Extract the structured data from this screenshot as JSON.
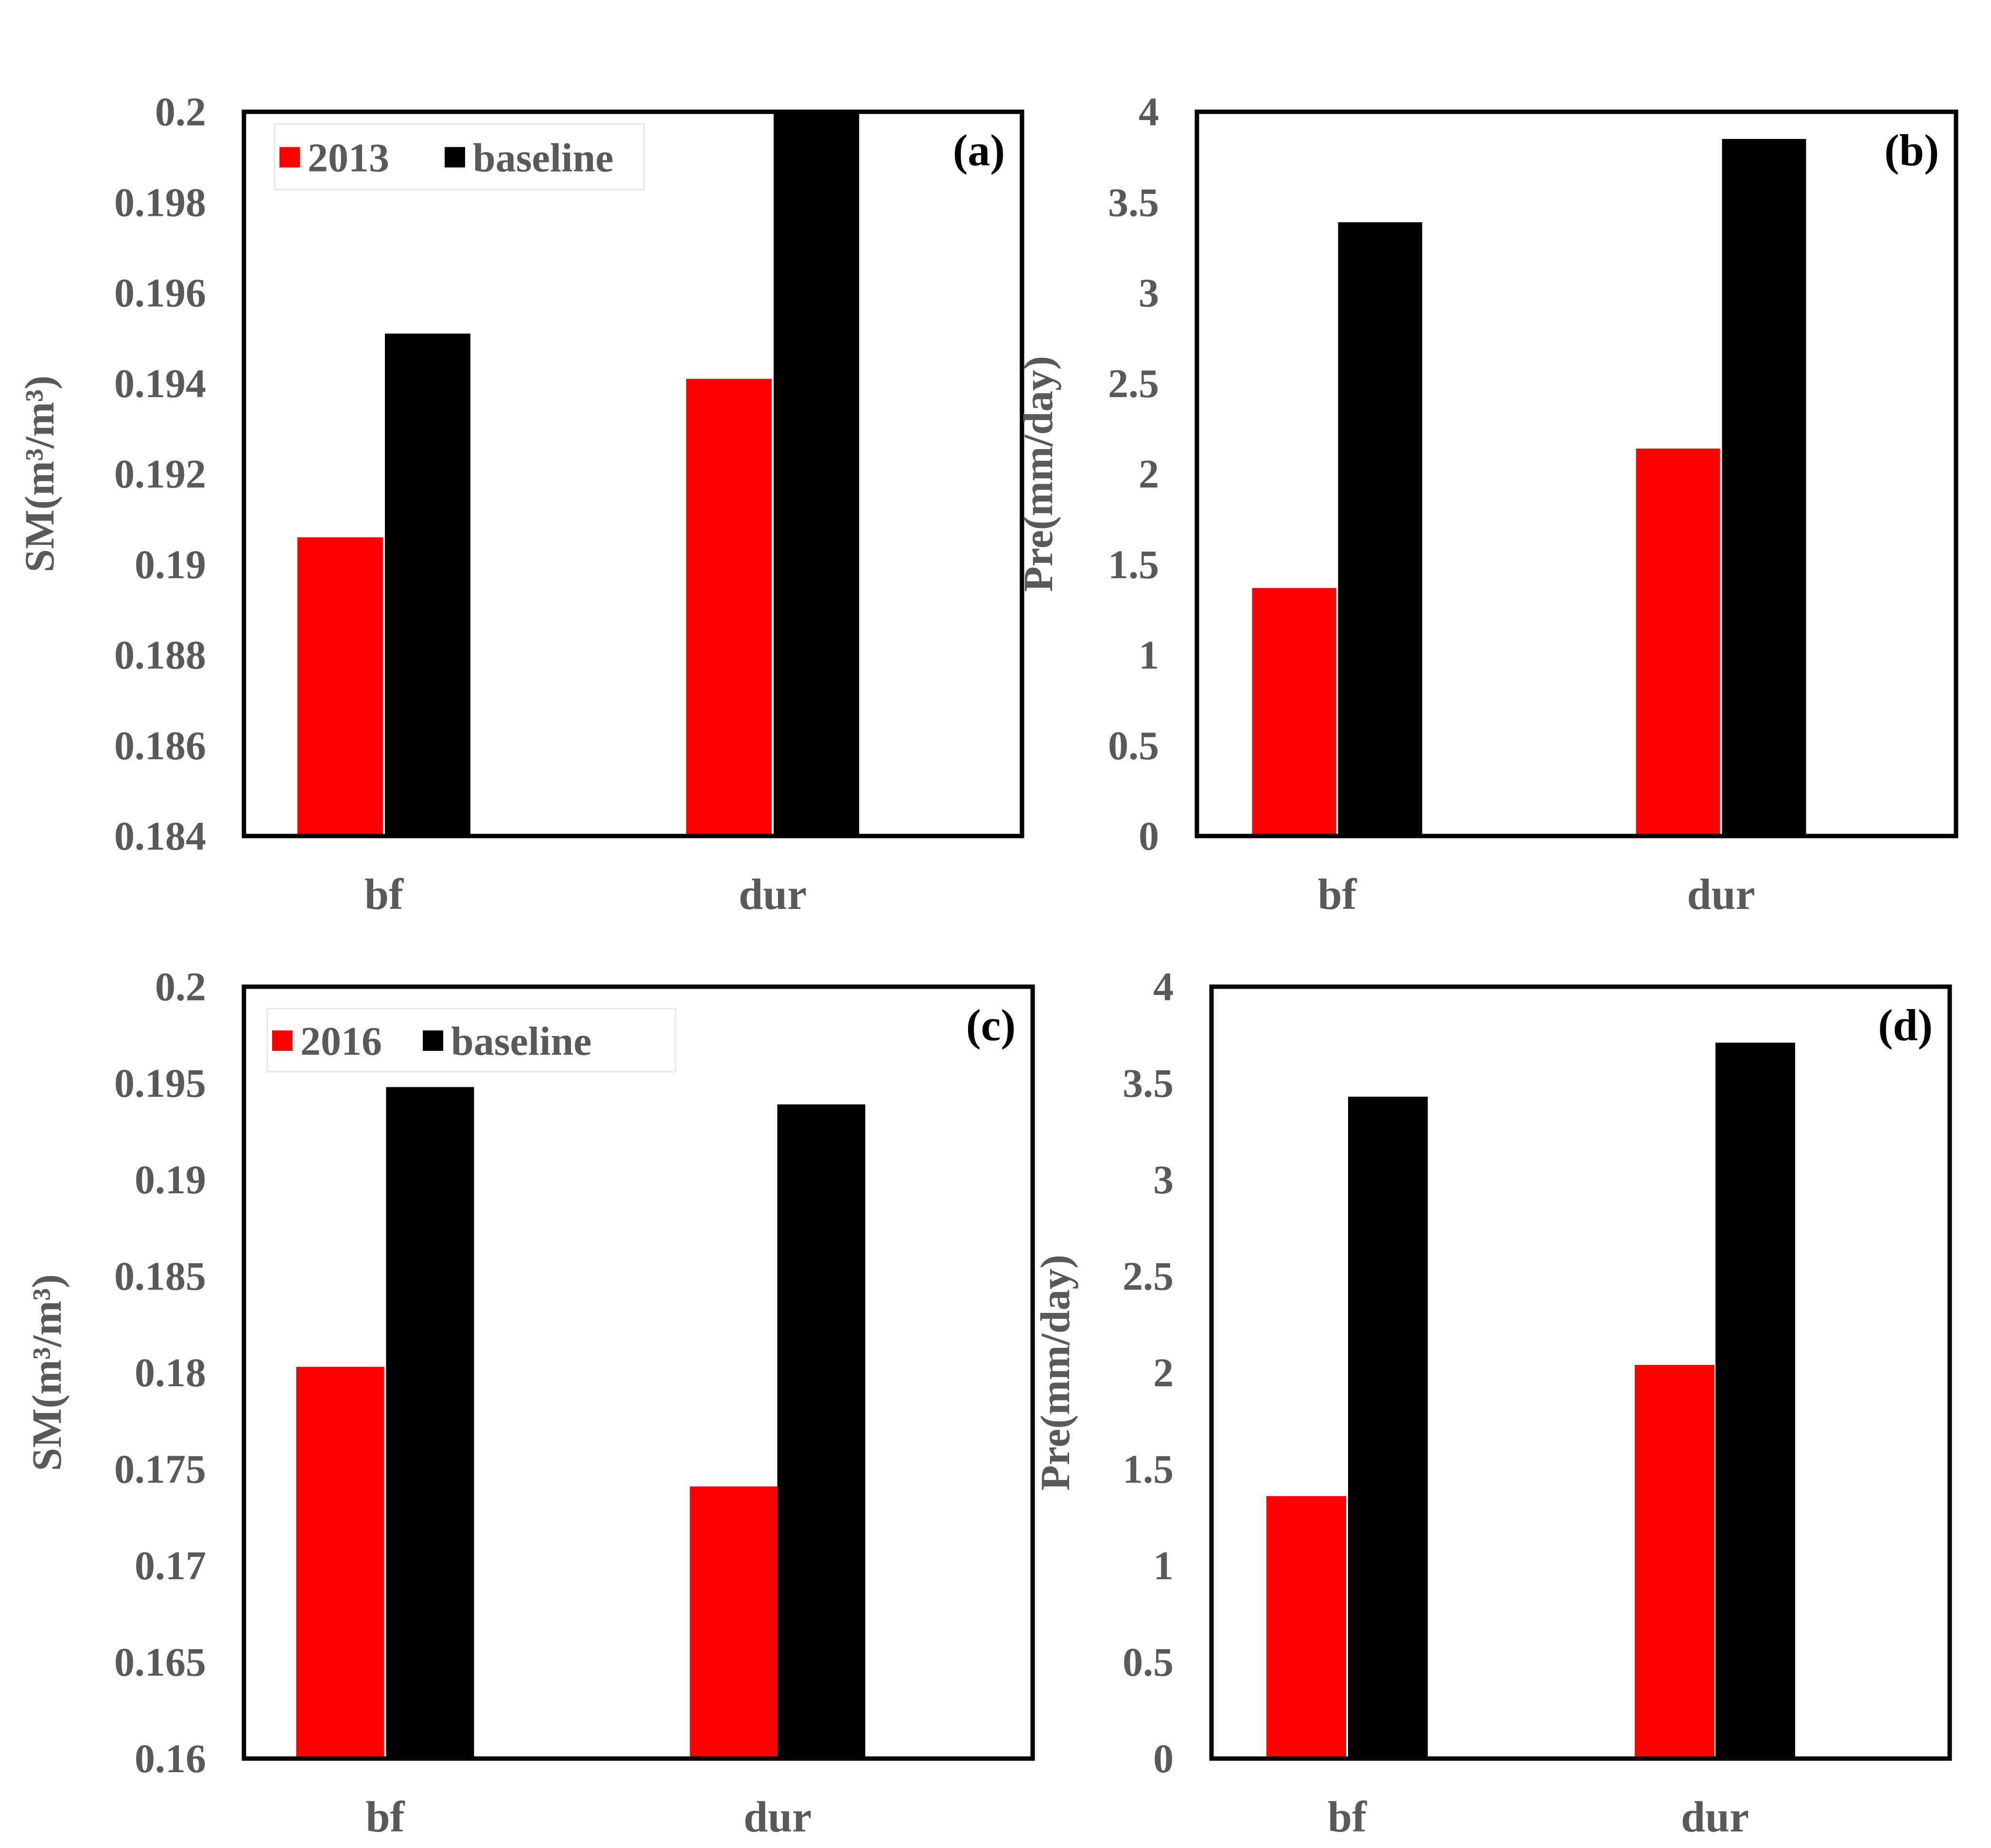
{
  "colors": {
    "year": "#ff0000",
    "baseline": "#000000",
    "axis_text": "#595959"
  },
  "chart_data": [
    {
      "type": "bar",
      "panel_label": "(a)",
      "categories": [
        "bf",
        "dur"
      ],
      "series": [
        {
          "name": "2013",
          "values": [
            0.1906,
            0.1941
          ]
        },
        {
          "name": "baseline",
          "values": [
            0.1951,
            0.2
          ]
        }
      ],
      "ylabel": "SM(m³/m³)",
      "ylim": [
        0.184,
        0.2
      ],
      "yticks": [
        "0.184",
        "0.186",
        "0.188",
        "0.19",
        "0.192",
        "0.194",
        "0.196",
        "0.198",
        "0.2"
      ],
      "legend": "top-left"
    },
    {
      "type": "bar",
      "panel_label": "(b)",
      "categories": [
        "bf",
        "dur"
      ],
      "series": [
        {
          "name": "2013",
          "values": [
            1.37,
            2.14
          ]
        },
        {
          "name": "baseline",
          "values": [
            3.39,
            3.85
          ]
        }
      ],
      "ylabel": "Pre(mm/day)",
      "ylim": [
        0,
        4
      ],
      "yticks": [
        "0",
        "0.5",
        "1",
        "1.5",
        "2",
        "2.5",
        "3",
        "3.5",
        "4"
      ]
    },
    {
      "type": "bar",
      "panel_label": "(c)",
      "categories": [
        "bf",
        "dur"
      ],
      "series": [
        {
          "name": "2016",
          "values": [
            0.1803,
            0.1741
          ]
        },
        {
          "name": "baseline",
          "values": [
            0.1948,
            0.1939
          ]
        }
      ],
      "ylabel": "SM(m³/m³)",
      "ylim": [
        0.16,
        0.2
      ],
      "yticks": [
        "0.16",
        "0.165",
        "0.17",
        "0.175",
        "0.18",
        "0.185",
        "0.19",
        "0.195",
        "0.2"
      ],
      "legend": "top-left"
    },
    {
      "type": "bar",
      "panel_label": "(d)",
      "categories": [
        "bf",
        "dur"
      ],
      "series": [
        {
          "name": "2016",
          "values": [
            1.36,
            2.04
          ]
        },
        {
          "name": "baseline",
          "values": [
            3.43,
            3.71
          ]
        }
      ],
      "ylabel": "Pre(mm/day)",
      "ylim": [
        0,
        4
      ],
      "yticks": [
        "0",
        "0.5",
        "1",
        "1.5",
        "2",
        "2.5",
        "3",
        "3.5",
        "4"
      ]
    }
  ]
}
